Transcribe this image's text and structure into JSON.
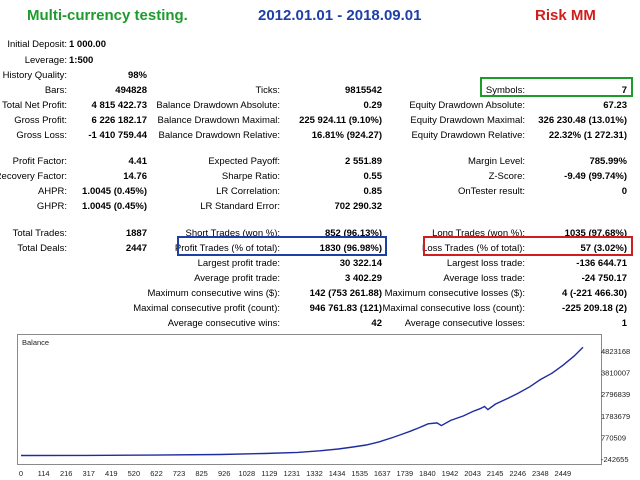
{
  "header": {
    "title": "Multi-currency testing.",
    "dates": "2012.01.01 - 2018.09.01",
    "mode": "Risk MM",
    "colors": {
      "title": "#1f9b2e",
      "dates": "#1f3fa8",
      "mode": "#d01e1e"
    }
  },
  "stats": {
    "initial_deposit": {
      "label": "Initial Deposit:",
      "value": "1 000.00"
    },
    "leverage": {
      "label": "Leverage:",
      "value": "1:500"
    },
    "history_quality": {
      "label": "History Quality:",
      "value": "98%"
    },
    "bars": {
      "label": "Bars:",
      "value": "494828"
    },
    "ticks": {
      "label": "Ticks:",
      "value": "9815542"
    },
    "symbols": {
      "label": "Symbols:",
      "value": "7"
    },
    "total_net_profit": {
      "label": "Total Net Profit:",
      "value": "4 815 422.73"
    },
    "balance_dd_abs": {
      "label": "Balance Drawdown Absolute:",
      "value": "0.29"
    },
    "equity_dd_abs": {
      "label": "Equity Drawdown Absolute:",
      "value": "67.23"
    },
    "gross_profit": {
      "label": "Gross Profit:",
      "value": "6 226 182.17"
    },
    "balance_dd_max": {
      "label": "Balance Drawdown Maximal:",
      "value": "225 924.11 (9.10%)"
    },
    "equity_dd_max": {
      "label": "Equity Drawdown Maximal:",
      "value": "326 230.48 (13.01%)"
    },
    "gross_loss": {
      "label": "Gross Loss:",
      "value": "-1 410 759.44"
    },
    "balance_dd_rel": {
      "label": "Balance Drawdown Relative:",
      "value": "16.81% (924.27)"
    },
    "equity_dd_rel": {
      "label": "Equity Drawdown Relative:",
      "value": "22.32% (1 272.31)"
    },
    "profit_factor": {
      "label": "Profit Factor:",
      "value": "4.41"
    },
    "expected_payoff": {
      "label": "Expected Payoff:",
      "value": "2 551.89"
    },
    "margin_level": {
      "label": "Margin Level:",
      "value": "785.99%"
    },
    "recovery_factor": {
      "label": "Recovery Factor:",
      "value": "14.76"
    },
    "sharpe_ratio": {
      "label": "Sharpe Ratio:",
      "value": "0.55"
    },
    "z_score": {
      "label": "Z-Score:",
      "value": "-9.49 (99.74%)"
    },
    "ahpr": {
      "label": "AHPR:",
      "value": "1.0045 (0.45%)"
    },
    "lr_correlation": {
      "label": "LR Correlation:",
      "value": "0.85"
    },
    "ontester": {
      "label": "OnTester result:",
      "value": "0"
    },
    "ghpr": {
      "label": "GHPR:",
      "value": "1.0045 (0.45%)"
    },
    "lr_std_error": {
      "label": "LR Standard Error:",
      "value": "702 290.32"
    },
    "total_trades": {
      "label": "Total Trades:",
      "value": "1887"
    },
    "short_trades": {
      "label": "Short Trades (won %):",
      "value": "852 (96.13%)"
    },
    "long_trades": {
      "label": "Long Trades (won %):",
      "value": "1035 (97.68%)"
    },
    "total_deals": {
      "label": "Total Deals:",
      "value": "2447"
    },
    "profit_trades": {
      "label": "Profit Trades (% of total):",
      "value": "1830 (96.98%)"
    },
    "loss_trades": {
      "label": "Loss Trades (% of total):",
      "value": "57 (3.02%)"
    },
    "largest_profit": {
      "label": "Largest profit trade:",
      "value": "30 322.14"
    },
    "largest_loss": {
      "label": "Largest loss trade:",
      "value": "-136 644.71"
    },
    "average_profit": {
      "label": "Average profit trade:",
      "value": "3 402.29"
    },
    "average_loss": {
      "label": "Average loss trade:",
      "value": "-24 750.17"
    },
    "max_consec_wins": {
      "label": "Maximum consecutive wins ($):",
      "value": "142 (753 261.88)"
    },
    "max_consec_losses": {
      "label": "Maximum consecutive losses ($):",
      "value": "4 (-221 466.30)"
    },
    "maximal_consec_profit": {
      "label": "Maximal consecutive profit (count):",
      "value": "946 761.83 (121)"
    },
    "maximal_consec_loss": {
      "label": "Maximal consecutive loss (count):",
      "value": "-225 209.18 (2)"
    },
    "avg_consec_wins": {
      "label": "Average consecutive wins:",
      "value": "42"
    },
    "avg_consec_losses": {
      "label": "Average consecutive losses:",
      "value": "1"
    }
  },
  "highlight_colors": {
    "symbols": "#1f9b2e",
    "profit_trades": "#1f3fa8",
    "loss_trades": "#d01e1e"
  },
  "chart_data": {
    "type": "line",
    "title": "Balance",
    "line_color": "#1f2ca0",
    "x_tick_labels": [
      "0",
      "114",
      "216",
      "317",
      "419",
      "520",
      "622",
      "723",
      "825",
      "926",
      "1028",
      "1129",
      "1231",
      "1332",
      "1434",
      "1535",
      "1637",
      "1739",
      "1840",
      "1942",
      "2043",
      "2145",
      "2246",
      "2348",
      "2449"
    ],
    "y_tick_labels": [
      "4823168",
      "3810007",
      "2796839",
      "1783679",
      "770509",
      "-242655"
    ],
    "ylim": [
      -242655,
      4823168
    ],
    "xlim": [
      0,
      2540
    ],
    "series": [
      {
        "x": [
          0,
          300,
          600,
          900,
          1100,
          1250,
          1350,
          1434,
          1500,
          1560,
          1620,
          1680,
          1720,
          1760,
          1800,
          1840,
          1880,
          1900,
          1942,
          2000,
          2043,
          2075,
          2095,
          2110,
          2145,
          2200,
          2246,
          2300,
          2348,
          2400,
          2449,
          2500,
          2540
        ],
        "y": [
          1000,
          8000,
          20000,
          45000,
          90000,
          140000,
          210000,
          290000,
          380000,
          470000,
          610000,
          800000,
          940000,
          1080000,
          1240000,
          1410000,
          1450000,
          1330000,
          1560000,
          1760000,
          1960000,
          2080000,
          2180000,
          2040000,
          2290000,
          2540000,
          2760000,
          3060000,
          3380000,
          3660000,
          4010000,
          4420000,
          4815000
        ]
      }
    ]
  }
}
